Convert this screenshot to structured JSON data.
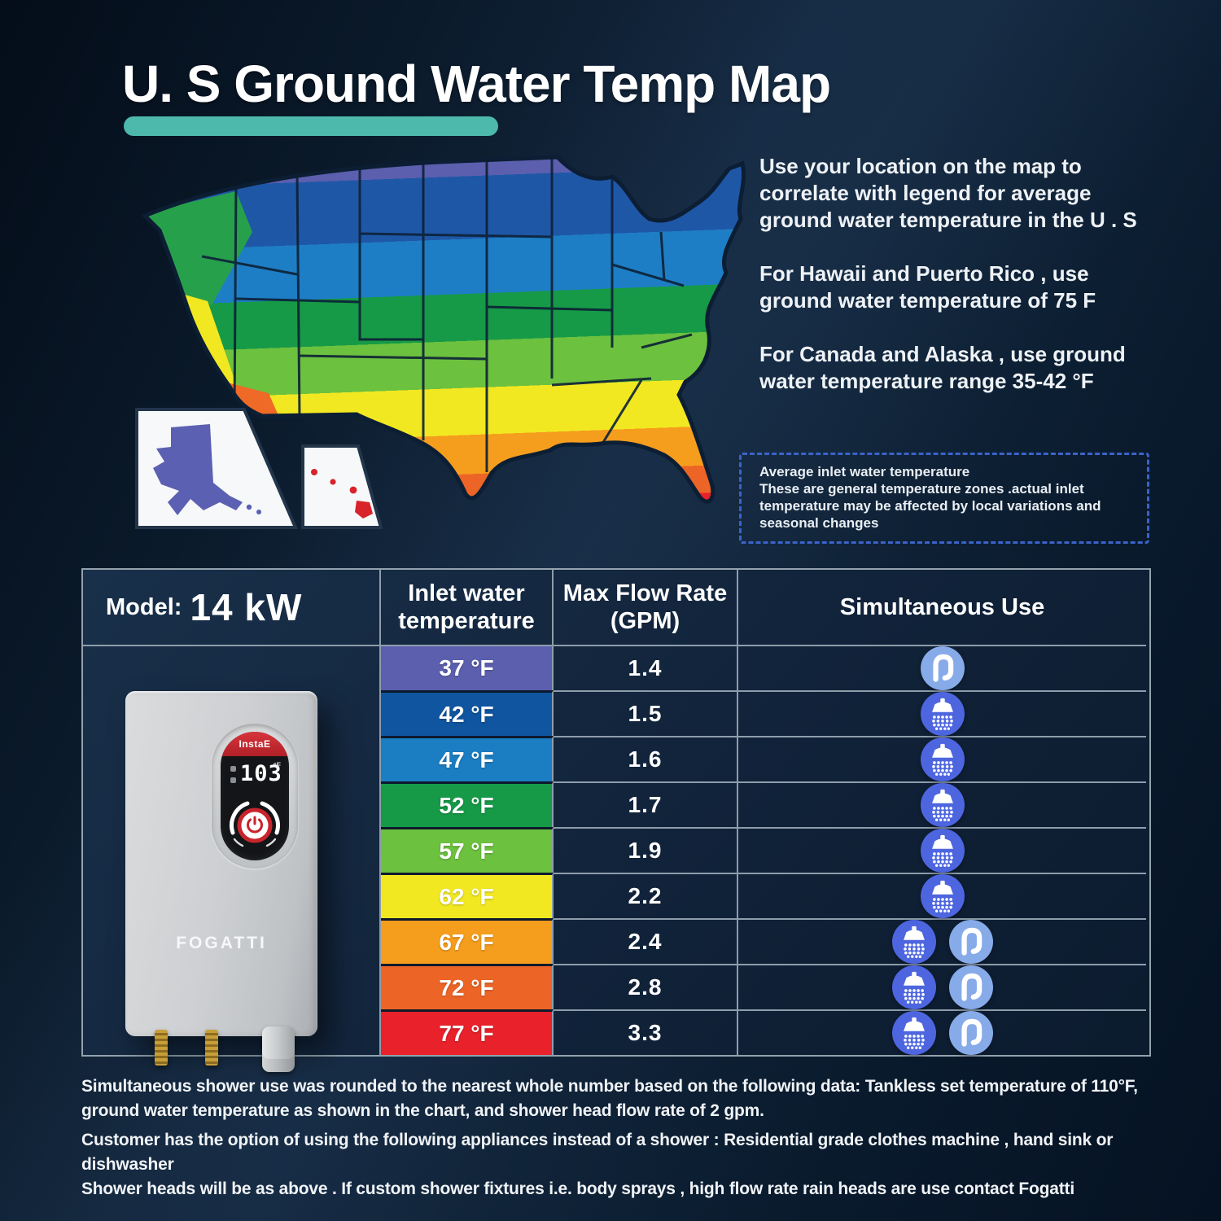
{
  "title": {
    "text": "U. S Ground Water Temp Map"
  },
  "intro": {
    "p1": "Use your location on the map to correlate with legend for average ground water temperature in the U . S",
    "p2": "For Hawaii and Puerto Rico , use ground water temperature of 75 F",
    "p3": "For Canada and Alaska , use ground water temperature range 35-42 °F"
  },
  "note": {
    "line1": "Average inlet water temperature",
    "line2": "These are general temperature zones .actual inlet temperature may be affected by local variations and seasonal changes"
  },
  "map": {
    "band_colors": [
      "#5b5fae",
      "#1f57a7",
      "#1e7ec5",
      "#169a47",
      "#6cc13f",
      "#f2e822",
      "#f59d1d",
      "#ed6526",
      "#e8212a"
    ],
    "band_offsets": [
      0.14,
      0.3,
      0.44,
      0.56,
      0.68,
      0.8,
      0.9,
      0.97
    ]
  },
  "table": {
    "model_label": "Model:",
    "model_value": "14 kW",
    "col_inlet": "Inlet water temperature",
    "col_flow": "Max Flow Rate (GPM)",
    "col_use": "Simultaneous Use",
    "rows": [
      {
        "temp": "37 °F",
        "color": "#5b5fae",
        "gpm": "1.4",
        "icons": [
          "faucet"
        ]
      },
      {
        "temp": "42 °F",
        "color": "#10559f",
        "gpm": "1.5",
        "icons": [
          "shower"
        ]
      },
      {
        "temp": "47 °F",
        "color": "#1b7dc2",
        "gpm": "1.6",
        "icons": [
          "shower"
        ]
      },
      {
        "temp": "52 °F",
        "color": "#169a47",
        "gpm": "1.7",
        "icons": [
          "shower"
        ]
      },
      {
        "temp": "57 °F",
        "color": "#6cc13f",
        "gpm": "1.9",
        "icons": [
          "shower"
        ]
      },
      {
        "temp": "62 °F",
        "color": "#f2e822",
        "gpm": "2.2",
        "icons": [
          "shower"
        ]
      },
      {
        "temp": "67 °F",
        "color": "#f59d1d",
        "gpm": "2.4",
        "icons": [
          "shower",
          "faucet"
        ]
      },
      {
        "temp": "72 °F",
        "color": "#ed6526",
        "gpm": "2.8",
        "icons": [
          "shower",
          "faucet"
        ]
      },
      {
        "temp": "77 °F",
        "color": "#e8212a",
        "gpm": "3.3",
        "icons": [
          "shower",
          "faucet"
        ]
      }
    ]
  },
  "product": {
    "brand": "FOGATTI",
    "panel_brand": "InstaE",
    "display_value": "103",
    "display_unit": "°F"
  },
  "footnotes": {
    "p1": "Simultaneous shower use was rounded to the nearest whole number based on the following data: Tankless set temperature of 110°F, ground water temperature as shown in the chart, and shower head flow rate of 2 gpm.",
    "p2a": "Customer has the option of using the following appliances instead of a shower : Residential grade clothes machine , hand sink or dishwasher",
    "p2b": "Shower heads will be as above . If custom shower fixtures i.e. body sprays , high flow rate rain heads are use contact Fogatti"
  }
}
